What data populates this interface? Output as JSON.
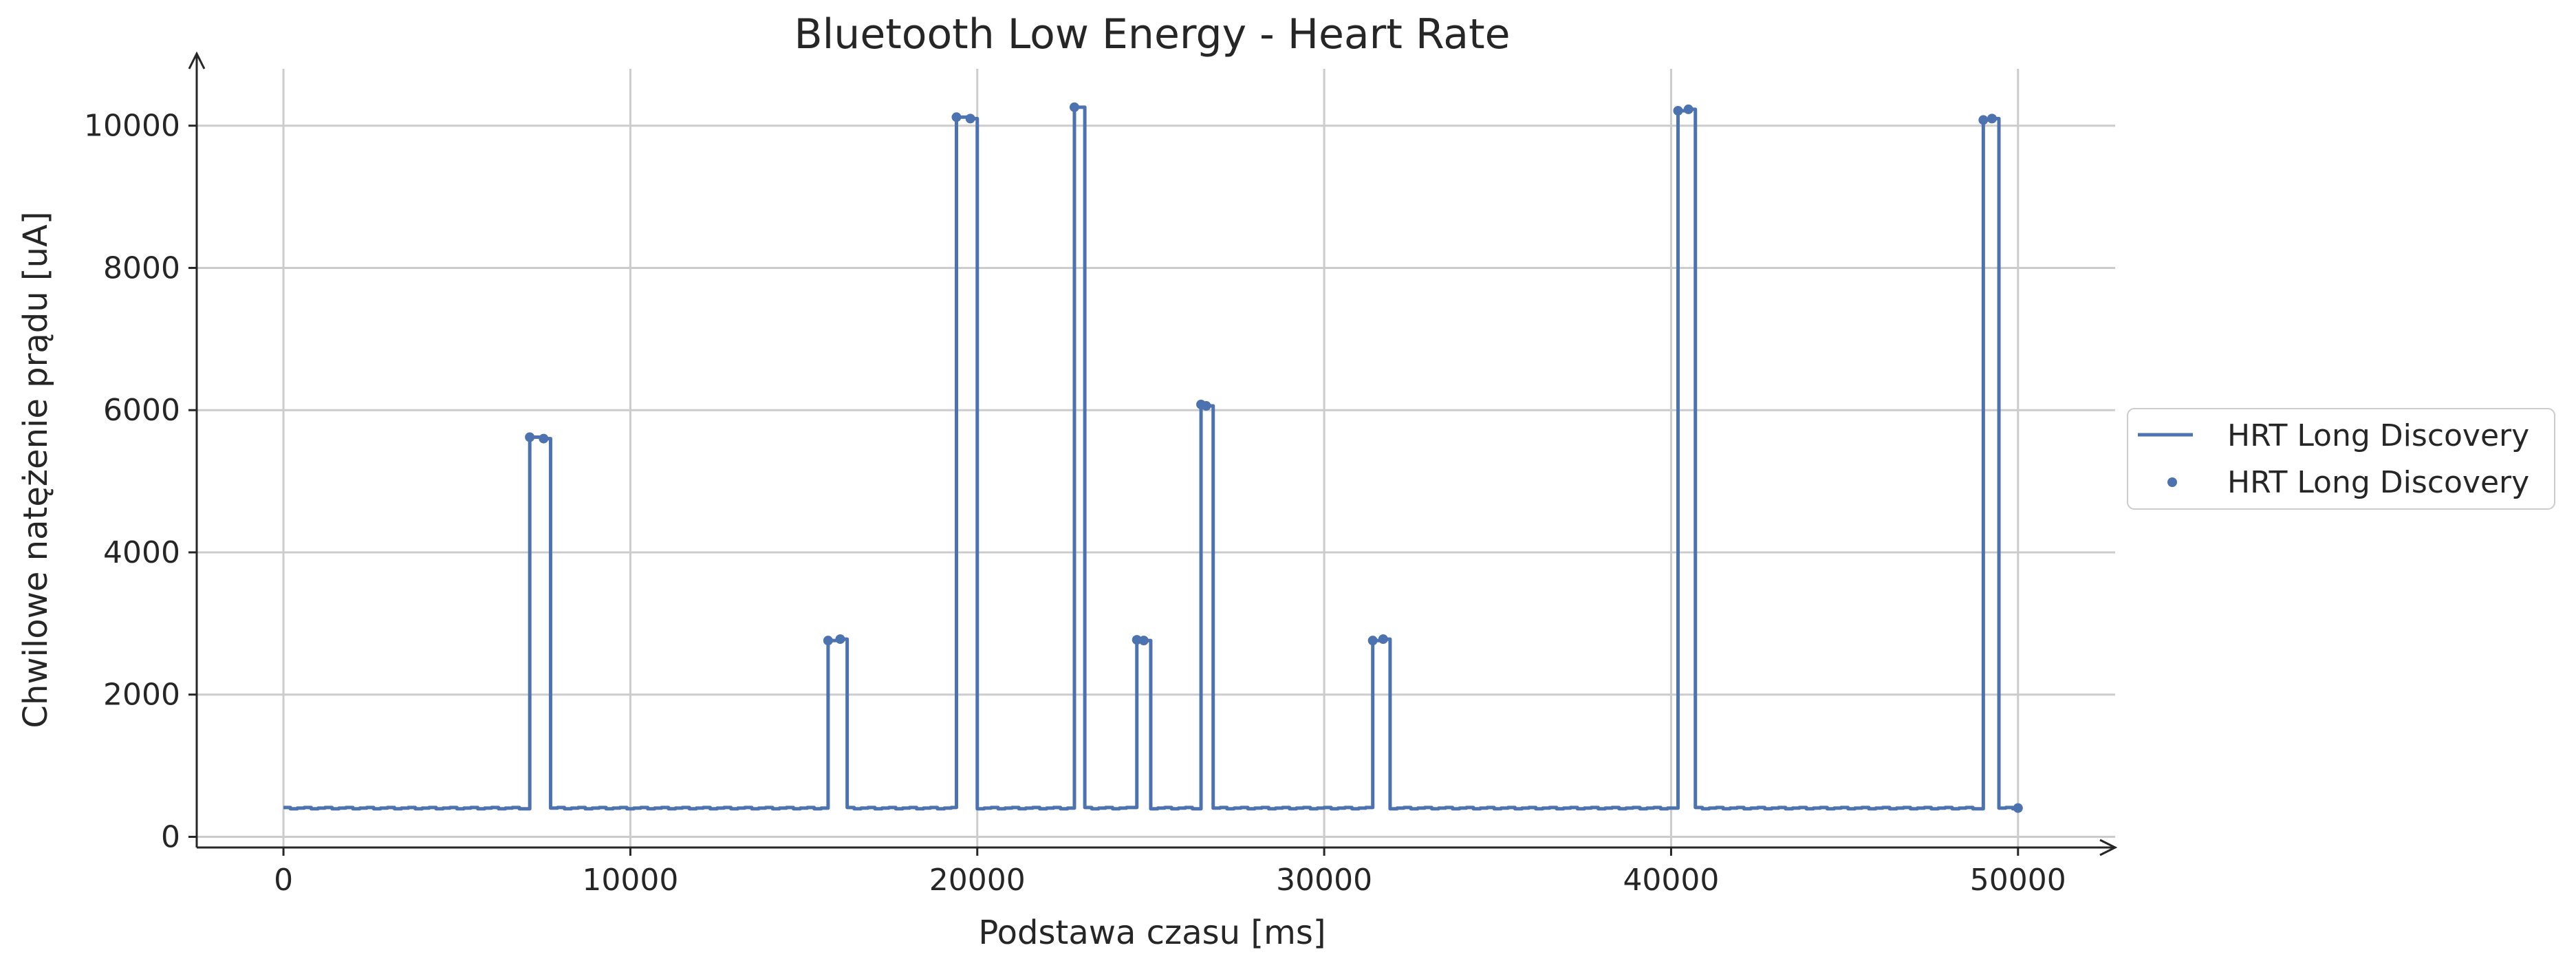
{
  "chart_data": {
    "type": "line",
    "title": "Bluetooth Low Energy - Heart Rate",
    "xlabel": "Podstawa czasu [ms]",
    "ylabel": "Chwilowe natężenie prądu [uA]",
    "xlim": [
      -2500,
      52800
    ],
    "ylim": [
      -150,
      10800
    ],
    "xticks": [
      0,
      10000,
      20000,
      30000,
      40000,
      50000
    ],
    "yticks": [
      0,
      2000,
      4000,
      6000,
      8000,
      10000
    ],
    "grid": true,
    "legend_placement": "center-right outside",
    "line_color": "#4c72b0",
    "legend": [
      {
        "label": "HRT Long Discovery",
        "marker": "line"
      },
      {
        "label": "HRT Long Discovery",
        "marker": "dot"
      }
    ],
    "baseline": 400,
    "spikes": [
      {
        "start": 7100,
        "end": 7500,
        "values": [
          5620,
          5600
        ]
      },
      {
        "start": 15700,
        "end": 16050,
        "values": [
          2760,
          2780
        ]
      },
      {
        "start": 19400,
        "end": 19800,
        "values": [
          10120,
          10100
        ]
      },
      {
        "start": 22800,
        "end": 22900,
        "values": [
          10260
        ]
      },
      {
        "start": 24600,
        "end": 24800,
        "values": [
          2770,
          2760
        ]
      },
      {
        "start": 26450,
        "end": 26600,
        "values": [
          6080,
          6060
        ]
      },
      {
        "start": 31400,
        "end": 31700,
        "values": [
          2760,
          2780
        ]
      },
      {
        "start": 40200,
        "end": 40500,
        "values": [
          10210,
          10230
        ]
      },
      {
        "start": 49000,
        "end": 49250,
        "values": [
          10080,
          10100
        ]
      }
    ],
    "x_end": 50000
  }
}
